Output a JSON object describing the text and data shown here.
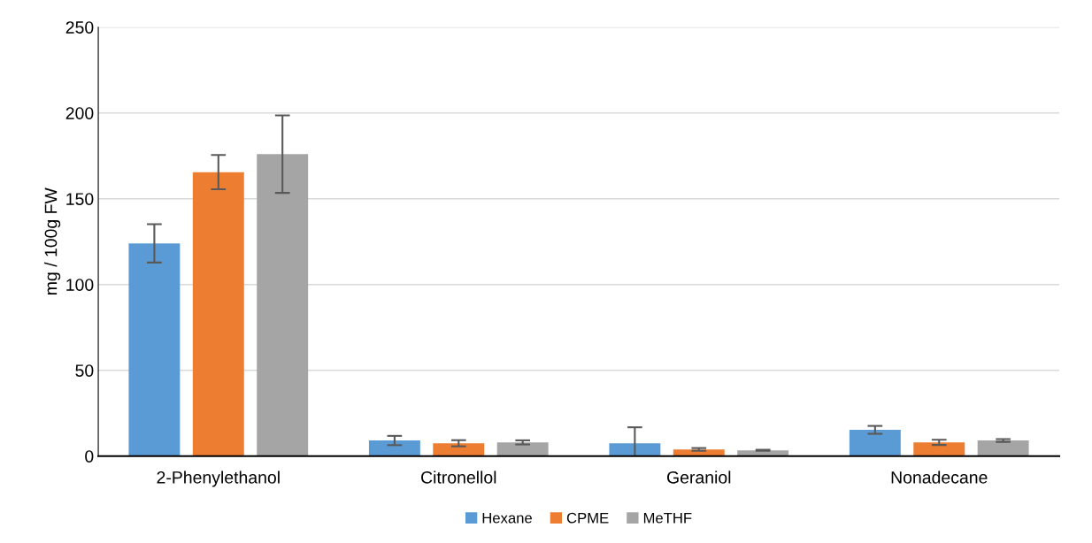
{
  "chart_data": {
    "type": "bar",
    "ylabel": "mg / 100g FW",
    "categories": [
      "2-Phenylethanol",
      "Citronellol",
      "Geraniol",
      "Nonadecane"
    ],
    "series": [
      {
        "name": "Hexane",
        "color": "#5b9bd5",
        "values": [
          124,
          9.1,
          7.5,
          15.3
        ],
        "errors": [
          11.2,
          2.7,
          9.3,
          2.3
        ]
      },
      {
        "name": "CPME",
        "color": "#ed7d31",
        "values": [
          165.5,
          7.5,
          3.9,
          8.0
        ],
        "errors": [
          10,
          1.8,
          0.8,
          1.5
        ]
      },
      {
        "name": "MeTHF",
        "color": "#a5a5a5",
        "values": [
          176,
          8.0,
          3.4,
          9.1
        ],
        "errors": [
          22.6,
          1.2,
          0.3,
          0.8
        ]
      }
    ],
    "ylim": [
      0,
      250
    ],
    "yticks": [
      0,
      50,
      100,
      150,
      200,
      250
    ],
    "grid": "y",
    "legend": "bottom"
  }
}
